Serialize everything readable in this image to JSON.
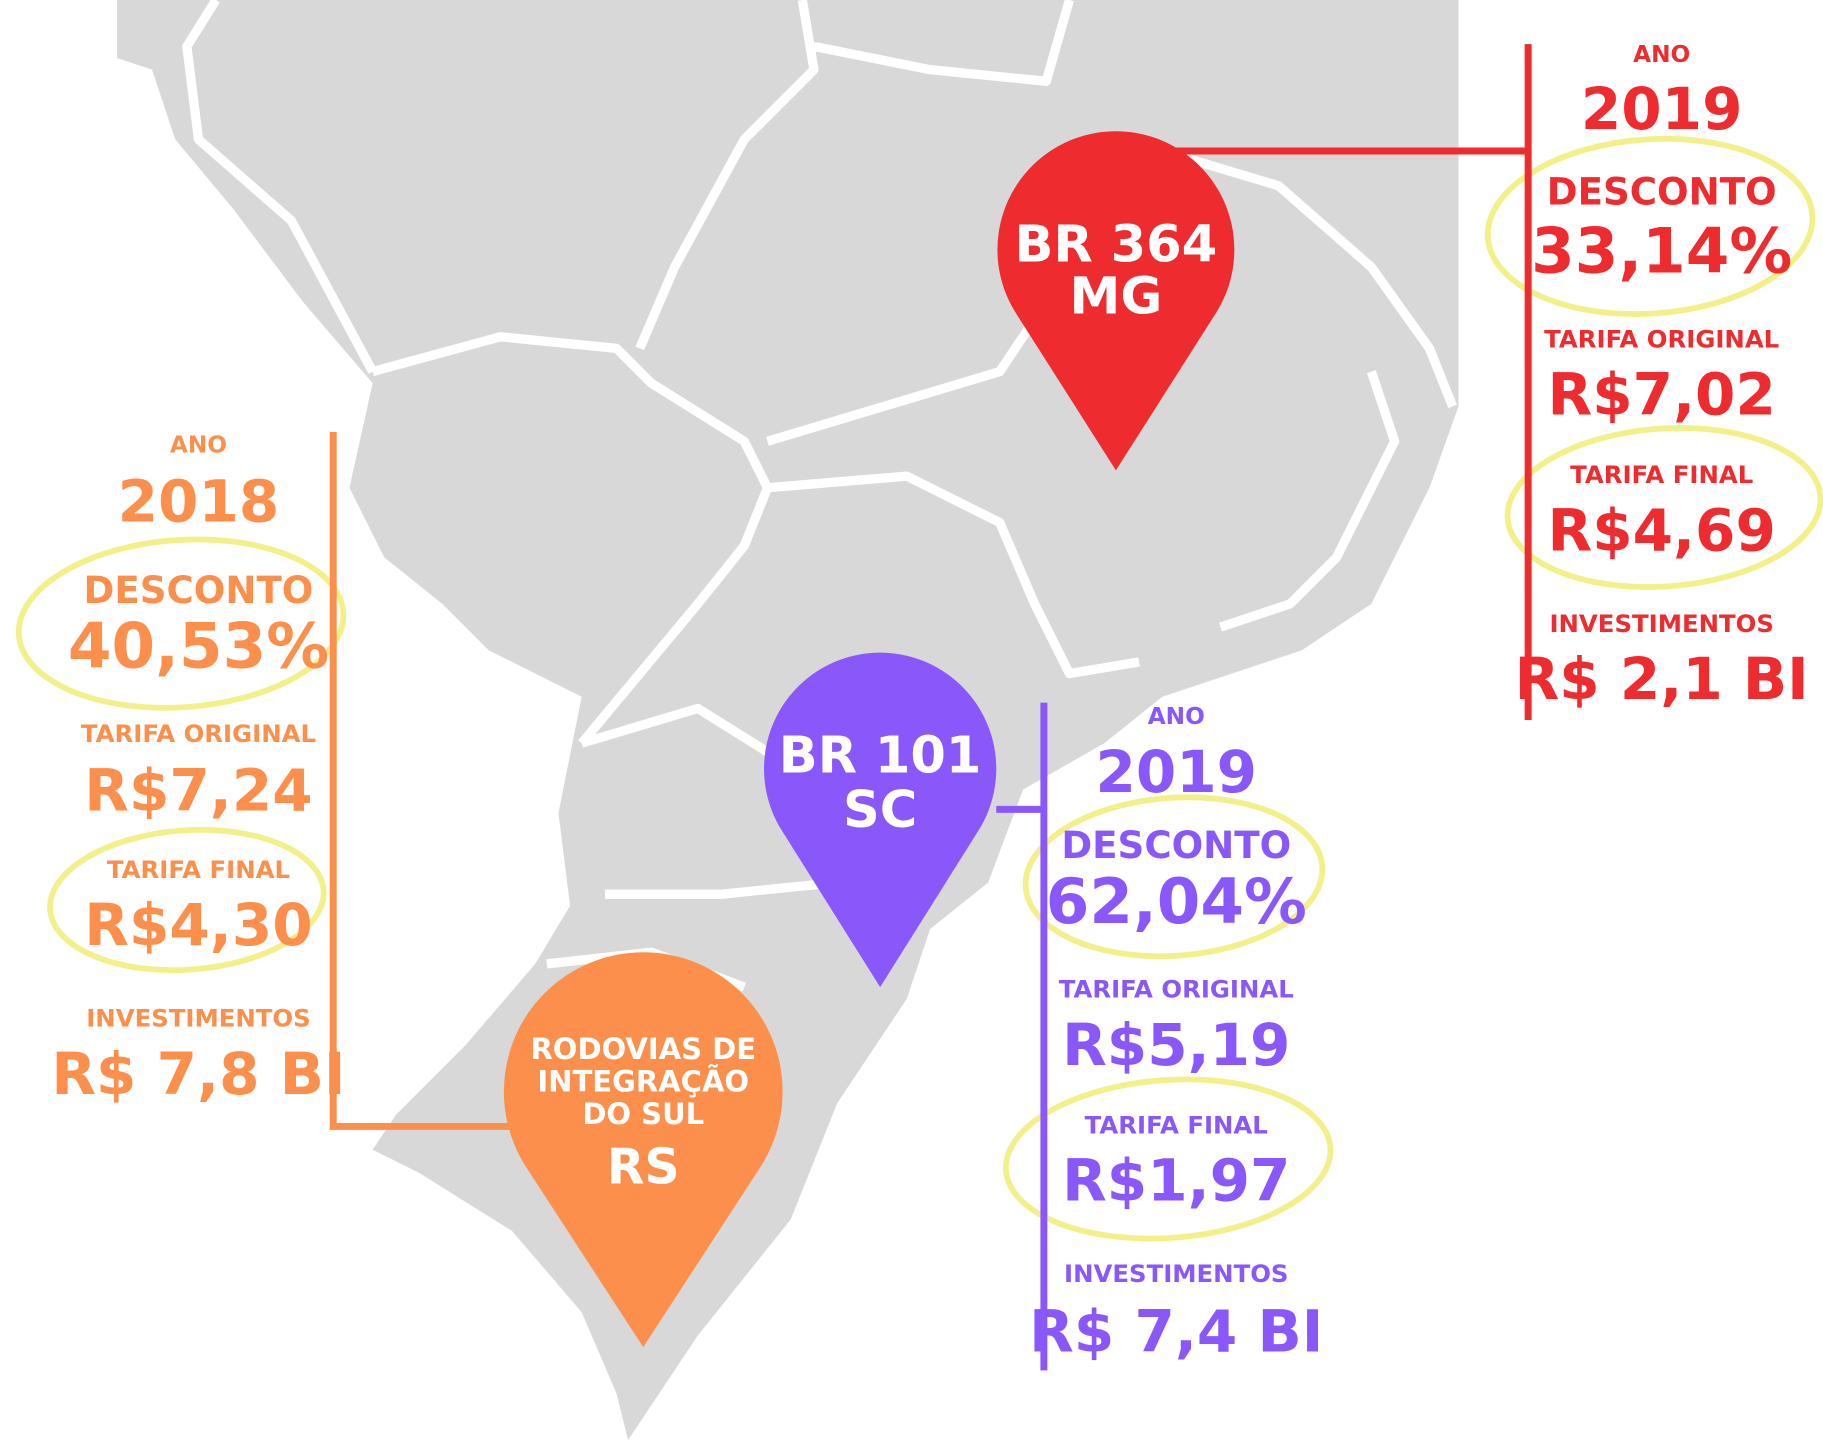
{
  "regions": [
    {
      "color": "#ee2c2f",
      "pin": [
        "BR 364",
        "MG"
      ],
      "ano_label": "ANO",
      "ano": "2019",
      "desconto_label": "DESCONTO",
      "desconto": "33,14%",
      "tarifa_original_label": "TARIFA ORIGINAL",
      "tarifa_original": "R$7,02",
      "tarifa_final_label": "TARIFA FINAL",
      "tarifa_final": "R$4,69",
      "investimentos_label": "INVESTIMENTOS",
      "investimentos": "R$ 2,1 BI"
    },
    {
      "color": "#fb8f4b",
      "pin": [
        "RODOVIAS DE",
        "INTEGRAÇÃO",
        "DO SUL",
        "RS"
      ],
      "ano_label": "ANO",
      "ano": "2018",
      "desconto_label": "DESCONTO",
      "desconto": "40,53%",
      "tarifa_original_label": "TARIFA ORIGINAL",
      "tarifa_original": "R$7,24",
      "tarifa_final_label": "TARIFA FINAL",
      "tarifa_final": "R$4,30",
      "investimentos_label": "INVESTIMENTOS",
      "investimentos": "R$ 7,8 BI"
    },
    {
      "color": "#8a57fb",
      "pin": [
        "BR 101",
        "SC"
      ],
      "ano_label": "ANO",
      "ano": "2019",
      "desconto_label": "DESCONTO",
      "desconto": "62,04%",
      "tarifa_original_label": "TARIFA ORIGINAL",
      "tarifa_original": "R$5,19",
      "tarifa_final_label": "TARIFA FINAL",
      "tarifa_final": "R$1,97",
      "investimentos_label": "INVESTIMENTOS",
      "investimentos": "R$ 7,4 BI"
    }
  ]
}
